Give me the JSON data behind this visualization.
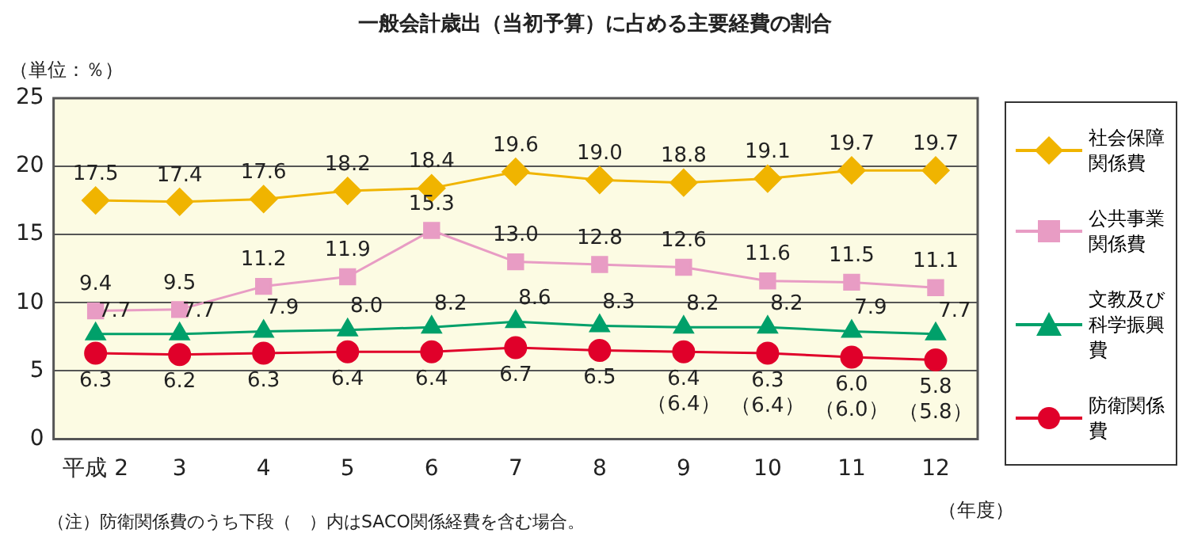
{
  "chart_data": {
    "type": "line",
    "title": "一般会計歳出（当初予算）に占める主要経費の割合",
    "ylabel": "（単位：％）",
    "xlabel": "（年度）",
    "categories": [
      "平成 2",
      "3",
      "4",
      "5",
      "6",
      "7",
      "8",
      "9",
      "10",
      "11",
      "12"
    ],
    "series": [
      {
        "name": "社会保障関係費",
        "color": "#f0b400",
        "marker": "diamond",
        "values": [
          17.5,
          17.4,
          17.6,
          18.2,
          18.4,
          19.6,
          19.0,
          18.8,
          19.1,
          19.7,
          19.7
        ],
        "value_labels": [
          "17.5",
          "17.4",
          "17.6",
          "18.2",
          "18.4",
          "19.6",
          "19.0",
          "18.8",
          "19.1",
          "19.7",
          "19.7"
        ]
      },
      {
        "name": "公共事業関係費",
        "color": "#e89cc4",
        "marker": "square",
        "values": [
          9.4,
          9.5,
          11.2,
          11.9,
          15.3,
          13.0,
          12.8,
          12.6,
          11.6,
          11.5,
          11.1
        ],
        "value_labels": [
          "9.4",
          "9.5",
          "11.2",
          "11.9",
          "15.3",
          "13.0",
          "12.8",
          "12.6",
          "11.6",
          "11.5",
          "11.1"
        ]
      },
      {
        "name": "文教及び科学振興費",
        "color": "#00a06a",
        "marker": "triangle",
        "values": [
          7.7,
          7.7,
          7.9,
          8.0,
          8.2,
          8.6,
          8.3,
          8.2,
          8.2,
          7.9,
          7.7
        ],
        "value_labels": [
          "7.7",
          "7.7",
          "7.9",
          "8.0",
          "8.2",
          "8.6",
          "8.3",
          "8.2",
          "8.2",
          "7.9",
          "7.7"
        ]
      },
      {
        "name": "防衛関係費",
        "color": "#e0002a",
        "marker": "circle",
        "values": [
          6.3,
          6.2,
          6.3,
          6.4,
          6.4,
          6.7,
          6.5,
          6.4,
          6.3,
          6.0,
          5.8
        ],
        "value_labels": [
          "6.3",
          "6.2",
          "6.3",
          "6.4",
          "6.4",
          "6.7",
          "6.5",
          "6.4",
          "6.3",
          "6.0",
          "5.8"
        ]
      }
    ],
    "ylim": [
      0,
      25
    ],
    "yticks": [
      0,
      5,
      10,
      15,
      20,
      25
    ],
    "grid": "y",
    "legend": "right",
    "annotations": [
      "（注）防衛関係費のうち下段（　）内はSACO関係経費を含む場合。",
      {
        "text": "（6.4）",
        "x": "9",
        "y": 6.4
      },
      {
        "text": "（6.4）",
        "x": "10",
        "y": 6.3
      },
      {
        "text": "（6.0）",
        "x": "11",
        "y": 6.0
      },
      {
        "text": "（5.8）",
        "x": "12",
        "y": 5.8
      }
    ]
  }
}
